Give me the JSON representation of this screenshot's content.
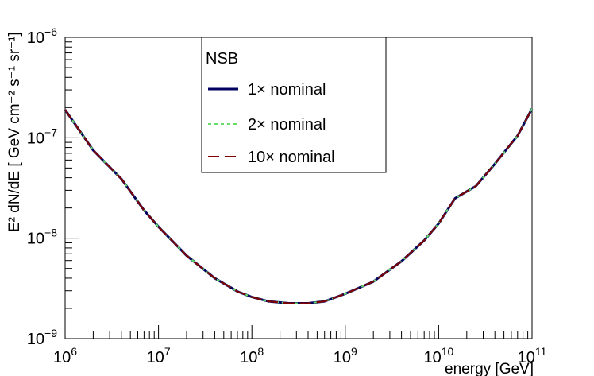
{
  "chart_data": {
    "type": "line",
    "title": "",
    "xlabel": "energy [GeV]",
    "ylabel": "E² dN/dE [ GeV cm⁻² s⁻¹ sr⁻¹]",
    "xscale": "log",
    "yscale": "log",
    "xlim": [
      1000000,
      100000000000
    ],
    "ylim": [
      1e-09,
      1e-06
    ],
    "x_tick_labels": [
      {
        "base": "10",
        "exp": "6"
      },
      {
        "base": "10",
        "exp": "7"
      },
      {
        "base": "10",
        "exp": "8"
      },
      {
        "base": "10",
        "exp": "9"
      },
      {
        "base": "10",
        "exp": "10"
      },
      {
        "base": "10",
        "exp": "11"
      }
    ],
    "y_tick_labels": [
      {
        "base": "10",
        "exp": "−9"
      },
      {
        "base": "10",
        "exp": "−8"
      },
      {
        "base": "10",
        "exp": "−7"
      },
      {
        "base": "10",
        "exp": "−6"
      }
    ],
    "legend": {
      "title": "NSB",
      "placement": "top-center"
    },
    "grid": false,
    "x": [
      1000000,
      2000000,
      4000000,
      7000000,
      10000000,
      20000000,
      40000000,
      70000000,
      100000000,
      150000000,
      250000000,
      400000000,
      600000000,
      1000000000,
      2000000000,
      4000000000,
      7000000000,
      10000000000,
      15000000000,
      25000000000,
      40000000000,
      70000000000,
      100000000000
    ],
    "series": [
      {
        "name": "1× nominal",
        "color": "#000060",
        "dash": "solid",
        "values": [
          1.9e-07,
          7.5e-08,
          3.9e-08,
          1.9e-08,
          1.3e-08,
          6.7e-09,
          4e-09,
          2.95e-09,
          2.6e-09,
          2.35e-09,
          2.25e-09,
          2.25e-09,
          2.35e-09,
          2.8e-09,
          3.7e-09,
          5.9e-09,
          9.5e-09,
          1.4e-08,
          2.5e-08,
          3.3e-08,
          5.5e-08,
          1.05e-07,
          1.95e-07
        ]
      },
      {
        "name": "2× nominal",
        "color": "#66dd66",
        "dash": "short",
        "values": [
          1.9e-07,
          7.5e-08,
          3.9e-08,
          1.9e-08,
          1.3e-08,
          6.7e-09,
          4e-09,
          2.95e-09,
          2.6e-09,
          2.35e-09,
          2.25e-09,
          2.25e-09,
          2.35e-09,
          2.8e-09,
          3.7e-09,
          5.9e-09,
          9.5e-09,
          1.4e-08,
          2.5e-08,
          3.3e-08,
          5.5e-08,
          1.05e-07,
          1.95e-07
        ]
      },
      {
        "name": "10× nominal",
        "color": "#800000",
        "dash": "long",
        "values": [
          1.9e-07,
          7.5e-08,
          3.9e-08,
          1.9e-08,
          1.3e-08,
          6.7e-09,
          4e-09,
          2.95e-09,
          2.6e-09,
          2.35e-09,
          2.25e-09,
          2.25e-09,
          2.35e-09,
          2.8e-09,
          3.7e-09,
          5.9e-09,
          9.5e-09,
          1.4e-08,
          2.5e-08,
          3.3e-08,
          5.5e-08,
          1.05e-07,
          1.95e-07
        ]
      }
    ]
  }
}
